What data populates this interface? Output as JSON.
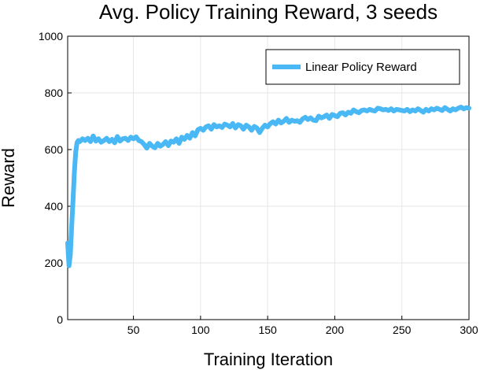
{
  "chart_data": {
    "type": "line",
    "title": "Avg. Policy Training Reward, 3 seeds",
    "xlabel": "Training Iteration",
    "ylabel": "Reward",
    "xlim": [
      1,
      300
    ],
    "ylim": [
      0,
      1000
    ],
    "xticks": [
      50,
      100,
      150,
      200,
      250,
      300
    ],
    "yticks": [
      0,
      200,
      400,
      600,
      800,
      1000
    ],
    "grid": true,
    "legend_position": "top-right",
    "series": [
      {
        "name": "Linear Policy Reward",
        "color": "#4ab8f5",
        "x": [
          1,
          2,
          3,
          4,
          5,
          6,
          7,
          8,
          9,
          10,
          12,
          14,
          16,
          18,
          20,
          22,
          24,
          26,
          28,
          30,
          32,
          34,
          36,
          38,
          40,
          42,
          44,
          46,
          48,
          50,
          52,
          54,
          56,
          58,
          60,
          62,
          64,
          66,
          68,
          70,
          72,
          74,
          76,
          78,
          80,
          82,
          84,
          86,
          88,
          90,
          92,
          94,
          96,
          98,
          100,
          102,
          104,
          106,
          108,
          110,
          112,
          114,
          116,
          118,
          120,
          122,
          124,
          126,
          128,
          130,
          132,
          134,
          136,
          138,
          140,
          142,
          144,
          146,
          148,
          150,
          152,
          154,
          156,
          158,
          160,
          162,
          164,
          166,
          168,
          170,
          172,
          174,
          176,
          178,
          180,
          182,
          184,
          186,
          188,
          190,
          192,
          194,
          196,
          198,
          200,
          202,
          204,
          206,
          208,
          210,
          212,
          214,
          216,
          218,
          220,
          222,
          224,
          226,
          228,
          230,
          232,
          234,
          236,
          238,
          240,
          242,
          244,
          246,
          248,
          250,
          252,
          254,
          256,
          258,
          260,
          262,
          264,
          266,
          268,
          270,
          272,
          274,
          276,
          278,
          280,
          282,
          284,
          286,
          288,
          290,
          292,
          294,
          296,
          298,
          300
        ],
        "values": [
          270,
          190,
          230,
          330,
          420,
          520,
          590,
          625,
          632,
          628,
          638,
          632,
          640,
          628,
          648,
          630,
          638,
          626,
          632,
          640,
          628,
          636,
          624,
          646,
          630,
          638,
          640,
          632,
          644,
          638,
          645,
          632,
          628,
          618,
          605,
          622,
          612,
          606,
          622,
          612,
          618,
          628,
          614,
          630,
          626,
          638,
          622,
          644,
          636,
          650,
          640,
          660,
          648,
          670,
          675,
          668,
          680,
          684,
          672,
          688,
          680,
          684,
          678,
          690,
          686,
          680,
          692,
          676,
          688,
          684,
          672,
          686,
          680,
          668,
          682,
          676,
          660,
          675,
          686,
          680,
          692,
          698,
          690,
          704,
          694,
          700,
          710,
          696,
          704,
          700,
          702,
          696,
          708,
          714,
          706,
          712,
          704,
          702,
          718,
          712,
          716,
          722,
          710,
          724,
          720,
          716,
          728,
          730,
          722,
          732,
          728,
          740,
          734,
          730,
          738,
          740,
          736,
          742,
          738,
          736,
          746,
          744,
          740,
          742,
          738,
          744,
          736,
          742,
          740,
          738,
          736,
          742,
          734,
          740,
          736,
          744,
          738,
          732,
          742,
          736,
          744,
          740,
          746,
          742,
          738,
          748,
          742,
          736,
          744,
          740,
          746,
          750,
          744,
          748,
          746
        ]
      }
    ]
  }
}
